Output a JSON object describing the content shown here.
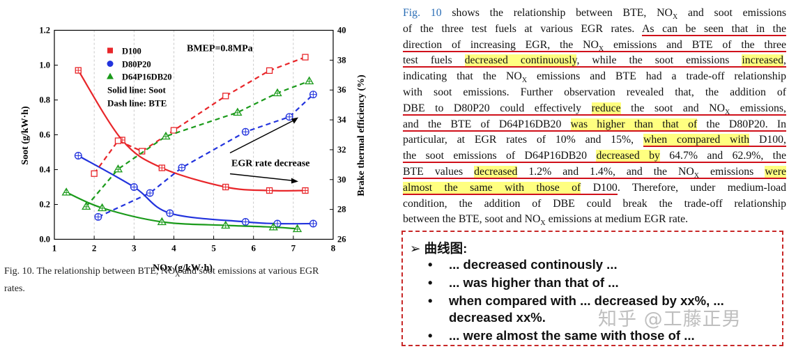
{
  "chart_data": {
    "type": "line",
    "annotation_condition": "BMEP=0.8MPa",
    "xlabel": "NOx (g/kW·h)",
    "ylabel_left": "Soot (g/kW·h)",
    "ylabel_right": "Brake thermal efficiency (%)",
    "xlim": [
      1,
      8
    ],
    "ylim_left": [
      0.0,
      1.2
    ],
    "ylim_right": [
      26,
      40
    ],
    "x_ticks": [
      "1",
      "2",
      "3",
      "4",
      "5",
      "6",
      "7",
      "8"
    ],
    "y_left_ticks": [
      "0.0",
      "0.2",
      "0.4",
      "0.6",
      "0.8",
      "1.0",
      "1.2"
    ],
    "y_right_ticks": [
      "26",
      "28",
      "30",
      "32",
      "34",
      "36",
      "38",
      "40"
    ],
    "legend": [
      "D100",
      "D80P20",
      "D64P16DB20"
    ],
    "legend_note1": "Solid line: Soot",
    "legend_note2": "Dash line: BTE",
    "arrow_label": "EGR rate decrease",
    "colors": {
      "D100": "#e8262a",
      "D80P20": "#2233dd",
      "D64P16DB20": "#1a9a1a"
    },
    "series": [
      {
        "name": "D100",
        "metric": "Soot",
        "x": [
          1.6,
          2.7,
          3.7,
          5.3,
          6.4,
          7.3
        ],
        "y": [
          0.97,
          0.57,
          0.41,
          0.3,
          0.28,
          0.28
        ]
      },
      {
        "name": "D80P20",
        "metric": "Soot",
        "x": [
          1.6,
          3.0,
          3.9,
          5.8,
          6.6,
          7.5
        ],
        "y": [
          0.48,
          0.3,
          0.15,
          0.1,
          0.09,
          0.09
        ]
      },
      {
        "name": "D64P16DB20",
        "metric": "Soot",
        "x": [
          1.3,
          2.2,
          3.7,
          5.3,
          6.5,
          7.1
        ],
        "y": [
          0.27,
          0.18,
          0.1,
          0.08,
          0.07,
          0.06
        ]
      },
      {
        "name": "D100",
        "metric": "BTE",
        "x": [
          2.0,
          2.6,
          3.2,
          4.0,
          5.3,
          6.4,
          7.3
        ],
        "y": [
          30.4,
          32.6,
          31.9,
          33.3,
          35.6,
          37.3,
          38.2
        ]
      },
      {
        "name": "D80P20",
        "metric": "BTE",
        "x": [
          2.1,
          3.4,
          4.2,
          5.8,
          6.9,
          7.5
        ],
        "y": [
          27.5,
          29.1,
          30.8,
          33.2,
          34.2,
          35.7
        ]
      },
      {
        "name": "D64P16DB20",
        "metric": "BTE",
        "x": [
          1.8,
          2.6,
          3.8,
          5.6,
          6.6,
          7.4
        ],
        "y": [
          28.2,
          30.7,
          32.9,
          34.5,
          35.8,
          36.6
        ]
      }
    ]
  },
  "caption": {
    "label": "Fig. 10.",
    "text_line1": "The relationship between BTE, NO",
    "text_sub": "X",
    "text_line1b": " and soot emissions at various EGR",
    "text_line2": "rates."
  },
  "paragraph": {
    "l1_ref": "Fig. 10",
    "l1_rest": " shows the relationship between BTE, NO",
    "l1_sub": "X",
    "l1_end": " and soot emissions",
    "l2_a": "of the three test fuels at various EGR rates. ",
    "l2_b": "As can be seen that in the",
    "l3_a": "direction of increasing EGR, the NO",
    "l3_sub": "X",
    "l3_b": " emissions and BTE of the three",
    "l4_a": "test fuels ",
    "l4_hl1": "decreased continuously",
    "l4_b": ", while the soot emissions ",
    "l4_hl2": "increased",
    "l4_c": ",",
    "l5_a": "indicating that the NO",
    "l5_sub": "X",
    "l5_b": " emissions and BTE had a trade-off relationship",
    "l6": "with soot emissions. Further observation revealed that, the addition of",
    "l7_a": "DBE to D80P20 could effectively ",
    "l7_hl": "reduce",
    "l7_b": " the soot and NO",
    "l7_sub": "X",
    "l7_c": " emissions,",
    "l8_a": "and the BTE of D64P16DB20 ",
    "l8_hl": "was higher than that of",
    "l8_b": " the D80P20. In",
    "l9_a": "particular, at EGR rates of 10% and 15%, ",
    "l9_hl": "when compared with",
    "l9_b": " D100,",
    "l10_a": "the soot emissions of D64P16DB20 ",
    "l10_hl": "decreased by",
    "l10_b": " 64.7% and 62.9%, the",
    "l11_a": "BTE values ",
    "l11_hl1": "decreased",
    "l11_b": " 1.2% and 1.4%, and the NO",
    "l11_sub": "X",
    "l11_c": " emissions ",
    "l11_hl2": "were",
    "l12_hl": "almost the same with those of",
    "l12_a": " D100",
    "l12_b": ". Therefore, under medium-load",
    "l13": "condition, the addition of DBE could break the trade-off relationship",
    "l14_a": "between the BTE, soot and NO",
    "l14_sub": "X",
    "l14_b": " emissions at medium EGR rate."
  },
  "notes": {
    "arrow": "➢",
    "title": "曲线图:",
    "bullet": "•",
    "items": [
      "... decreased continously ...",
      "... was higher than that of ...",
      "when compared with ... decreased by xx%, ...",
      "decreased xx%.",
      "... were almost the same with those of ..."
    ]
  },
  "watermark": "知乎 @工藤正男"
}
